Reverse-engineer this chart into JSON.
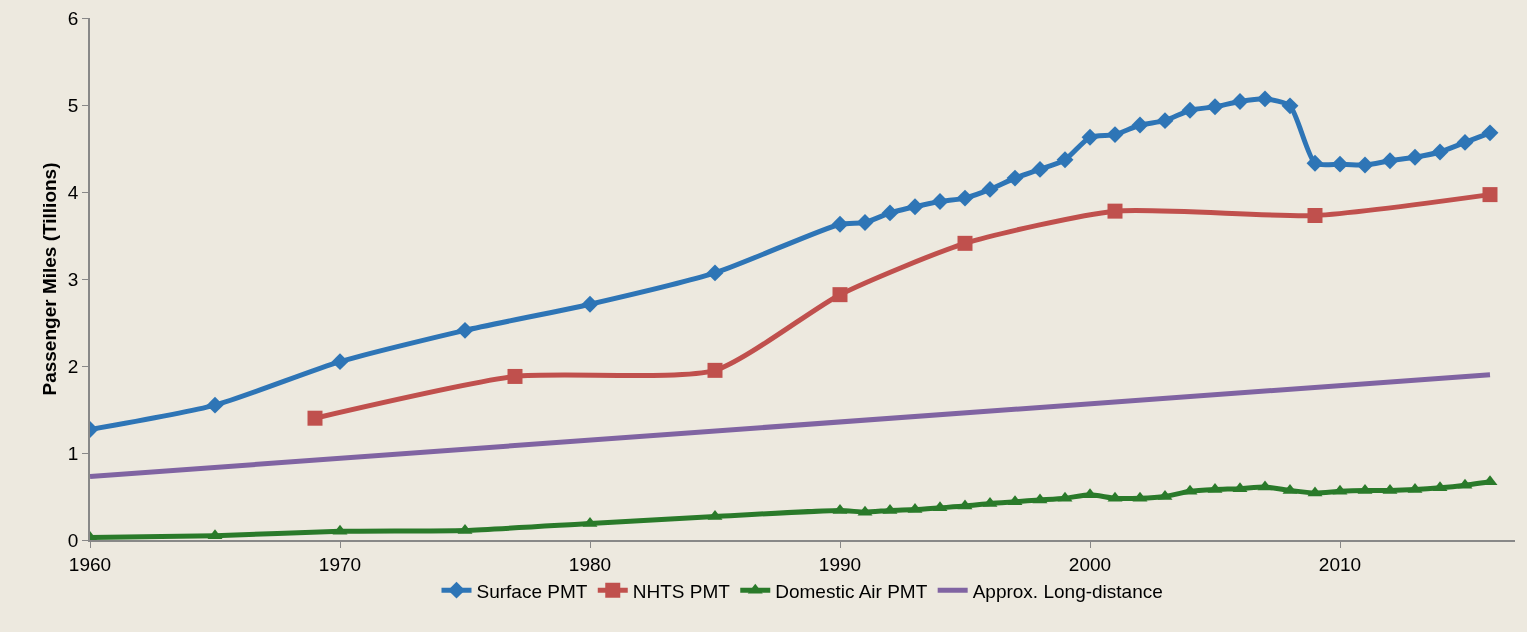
{
  "chart_data": {
    "type": "line",
    "ylabel": "Passenger Miles (Tillions)",
    "xlim": [
      1960,
      2017
    ],
    "xticks": [
      1960,
      1970,
      1980,
      1990,
      2000,
      2010
    ],
    "ylim": [
      0,
      6
    ],
    "yticks": [
      0,
      1,
      2,
      3,
      4,
      5,
      6
    ],
    "grid": false,
    "legend": "bottom",
    "line_style": "solid",
    "series": [
      {
        "name": "Surface PMT",
        "color": "#2e75b6",
        "marker": "diamond",
        "x": [
          1960,
          1965,
          1970,
          1975,
          1980,
          1985,
          1990,
          1991,
          1992,
          1993,
          1994,
          1995,
          1996,
          1997,
          1998,
          1999,
          2000,
          2001,
          2002,
          2003,
          2004,
          2005,
          2006,
          2007,
          2008,
          2009,
          2010,
          2011,
          2012,
          2013,
          2014,
          2015,
          2016
        ],
        "values": [
          1.27,
          1.55,
          2.05,
          2.41,
          2.71,
          3.07,
          3.63,
          3.65,
          3.76,
          3.83,
          3.89,
          3.93,
          4.03,
          4.16,
          4.26,
          4.37,
          4.63,
          4.66,
          4.77,
          4.82,
          4.94,
          4.98,
          5.04,
          5.07,
          4.99,
          4.33,
          4.32,
          4.31,
          4.36,
          4.4,
          4.46,
          4.57,
          4.68
        ]
      },
      {
        "name": "NHTS PMT",
        "color": "#c0504d",
        "marker": "square",
        "x": [
          1969,
          1977,
          1985,
          1990,
          1995,
          2001,
          2009,
          2016
        ],
        "values": [
          1.4,
          1.88,
          1.95,
          2.82,
          3.41,
          3.78,
          3.73,
          3.97
        ]
      },
      {
        "name": "Domestic Air PMT",
        "color": "#2a7a2a",
        "marker": "triangle",
        "x": [
          1960,
          1965,
          1970,
          1975,
          1980,
          1985,
          1990,
          1991,
          1992,
          1993,
          1994,
          1995,
          1996,
          1997,
          1998,
          1999,
          2000,
          2001,
          2002,
          2003,
          2004,
          2005,
          2006,
          2007,
          2008,
          2009,
          2010,
          2011,
          2012,
          2013,
          2014,
          2015,
          2016
        ],
        "values": [
          0.03,
          0.05,
          0.1,
          0.11,
          0.19,
          0.27,
          0.34,
          0.32,
          0.34,
          0.35,
          0.37,
          0.39,
          0.42,
          0.44,
          0.46,
          0.48,
          0.52,
          0.48,
          0.48,
          0.5,
          0.56,
          0.58,
          0.59,
          0.61,
          0.57,
          0.54,
          0.56,
          0.57,
          0.57,
          0.58,
          0.6,
          0.63,
          0.67
        ]
      },
      {
        "name": "Approx. Long-distance",
        "color": "#8064a2",
        "marker": "none",
        "x": [
          1960,
          2016
        ],
        "values": [
          0.73,
          1.9
        ]
      }
    ]
  }
}
